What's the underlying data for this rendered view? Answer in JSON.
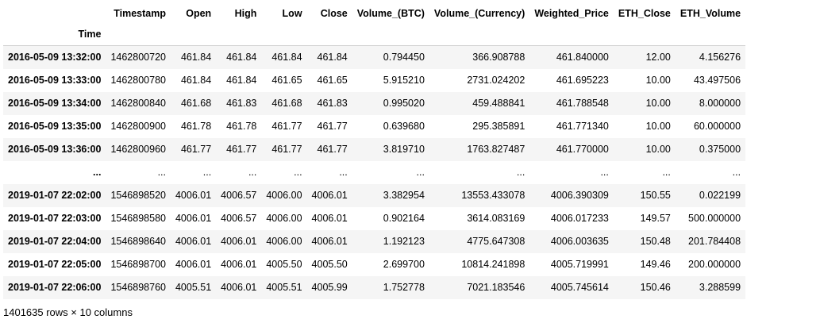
{
  "table": {
    "index_name": "Time",
    "columns": [
      "Timestamp",
      "Open",
      "High",
      "Low",
      "Close",
      "Volume_(BTC)",
      "Volume_(Currency)",
      "Weighted_Price",
      "ETH_Close",
      "ETH_Volume"
    ],
    "rows": [
      {
        "index": "2016-05-09 13:32:00",
        "cells": [
          "1462800720",
          "461.84",
          "461.84",
          "461.84",
          "461.84",
          "0.794450",
          "366.908788",
          "461.840000",
          "12.00",
          "4.156276"
        ]
      },
      {
        "index": "2016-05-09 13:33:00",
        "cells": [
          "1462800780",
          "461.84",
          "461.84",
          "461.65",
          "461.65",
          "5.915210",
          "2731.024202",
          "461.695223",
          "10.00",
          "43.497506"
        ]
      },
      {
        "index": "2016-05-09 13:34:00",
        "cells": [
          "1462800840",
          "461.68",
          "461.83",
          "461.68",
          "461.83",
          "0.995020",
          "459.488841",
          "461.788548",
          "10.00",
          "8.000000"
        ]
      },
      {
        "index": "2016-05-09 13:35:00",
        "cells": [
          "1462800900",
          "461.78",
          "461.78",
          "461.77",
          "461.77",
          "0.639680",
          "295.385891",
          "461.771340",
          "10.00",
          "60.000000"
        ]
      },
      {
        "index": "2016-05-09 13:36:00",
        "cells": [
          "1462800960",
          "461.77",
          "461.77",
          "461.77",
          "461.77",
          "3.819710",
          "1763.827487",
          "461.770000",
          "10.00",
          "0.375000"
        ]
      },
      {
        "index": "...",
        "cells": [
          "...",
          "...",
          "...",
          "...",
          "...",
          "...",
          "...",
          "...",
          "...",
          "..."
        ]
      },
      {
        "index": "2019-01-07 22:02:00",
        "cells": [
          "1546898520",
          "4006.01",
          "4006.57",
          "4006.00",
          "4006.01",
          "3.382954",
          "13553.433078",
          "4006.390309",
          "150.55",
          "0.022199"
        ]
      },
      {
        "index": "2019-01-07 22:03:00",
        "cells": [
          "1546898580",
          "4006.01",
          "4006.57",
          "4006.00",
          "4006.01",
          "0.902164",
          "3614.083169",
          "4006.017233",
          "149.57",
          "500.000000"
        ]
      },
      {
        "index": "2019-01-07 22:04:00",
        "cells": [
          "1546898640",
          "4006.01",
          "4006.01",
          "4006.00",
          "4006.01",
          "1.192123",
          "4775.647308",
          "4006.003635",
          "150.48",
          "201.784408"
        ]
      },
      {
        "index": "2019-01-07 22:05:00",
        "cells": [
          "1546898700",
          "4006.01",
          "4006.01",
          "4005.50",
          "4005.50",
          "2.699700",
          "10814.241898",
          "4005.719991",
          "149.46",
          "200.000000"
        ]
      },
      {
        "index": "2019-01-07 22:06:00",
        "cells": [
          "1546898760",
          "4005.51",
          "4006.01",
          "4005.51",
          "4005.99",
          "1.752778",
          "7021.183546",
          "4005.745614",
          "150.46",
          "3.288599"
        ]
      }
    ]
  },
  "caption": "1401635 rows × 10 columns"
}
